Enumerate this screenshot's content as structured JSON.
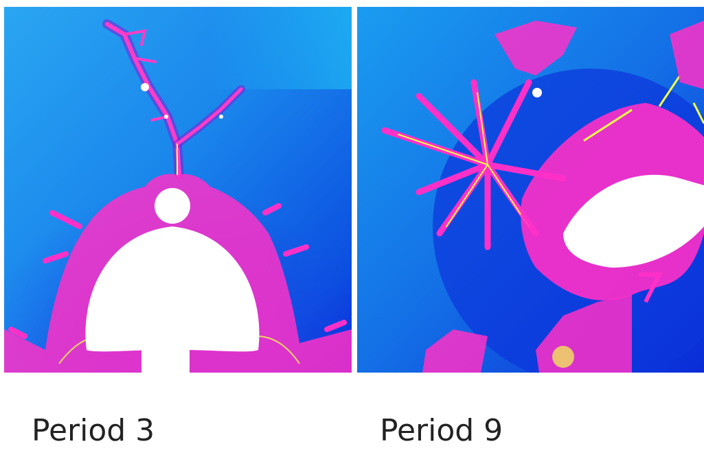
{
  "panels": [
    {
      "caption": "Period 3"
    },
    {
      "caption": "Period 9"
    }
  ],
  "colors": {
    "sky_light": "#1fbcf5",
    "sky_mid": "#1690ea",
    "deep_blue": "#0a2bd8",
    "magenta": "#ff30c8",
    "violet": "#8a2be2",
    "yellow": "#f4ff4a",
    "set_white": "#ffffff"
  }
}
